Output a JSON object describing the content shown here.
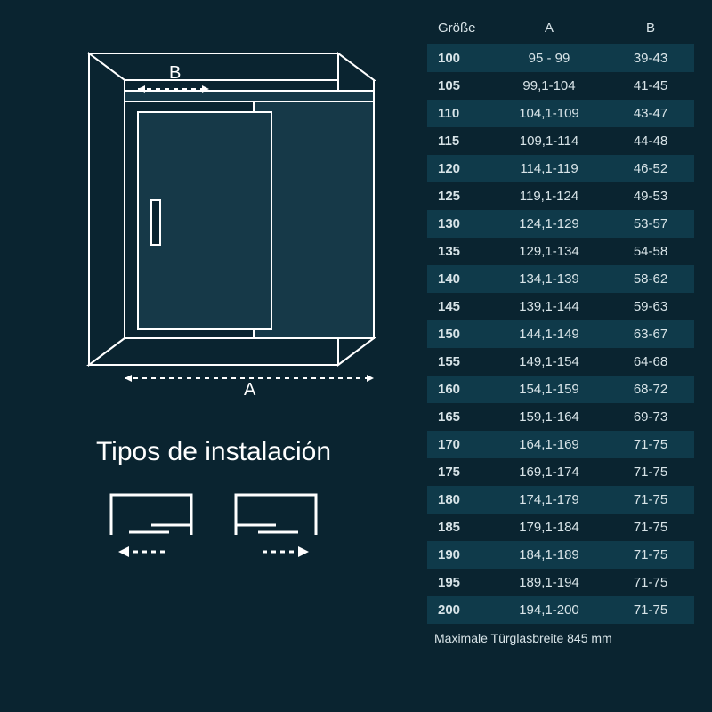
{
  "colors": {
    "background": "#0a2430",
    "stripe": "#0f3a4a",
    "text": "#d8e4e8",
    "stroke": "#ffffff",
    "panel_fill": "#163948"
  },
  "diagram": {
    "label_A": "A",
    "label_B": "B",
    "stroke_width": 2,
    "dash": "5,5"
  },
  "install": {
    "title": "Tipos de instalación",
    "title_fontsize": 30
  },
  "table": {
    "columns": [
      "Größe",
      "A",
      "B"
    ],
    "rows": [
      [
        "100",
        "95 - 99",
        "39-43"
      ],
      [
        "105",
        "99,1-104",
        "41-45"
      ],
      [
        "110",
        "104,1-109",
        "43-47"
      ],
      [
        "115",
        "109,1-114",
        "44-48"
      ],
      [
        "120",
        "114,1-119",
        "46-52"
      ],
      [
        "125",
        "119,1-124",
        "49-53"
      ],
      [
        "130",
        "124,1-129",
        "53-57"
      ],
      [
        "135",
        "129,1-134",
        "54-58"
      ],
      [
        "140",
        "134,1-139",
        "58-62"
      ],
      [
        "145",
        "139,1-144",
        "59-63"
      ],
      [
        "150",
        "144,1-149",
        "63-67"
      ],
      [
        "155",
        "149,1-154",
        "64-68"
      ],
      [
        "160",
        "154,1-159",
        "68-72"
      ],
      [
        "165",
        "159,1-164",
        "69-73"
      ],
      [
        "170",
        "164,1-169",
        "71-75"
      ],
      [
        "175",
        "169,1-174",
        "71-75"
      ],
      [
        "180",
        "174,1-179",
        "71-75"
      ],
      [
        "185",
        "179,1-184",
        "71-75"
      ],
      [
        "190",
        "184,1-189",
        "71-75"
      ],
      [
        "195",
        "189,1-194",
        "71-75"
      ],
      [
        "200",
        "194,1-200",
        "71-75"
      ]
    ],
    "footnote": "Maximale Türglasbreite 845 mm",
    "stripe_start": 0
  }
}
